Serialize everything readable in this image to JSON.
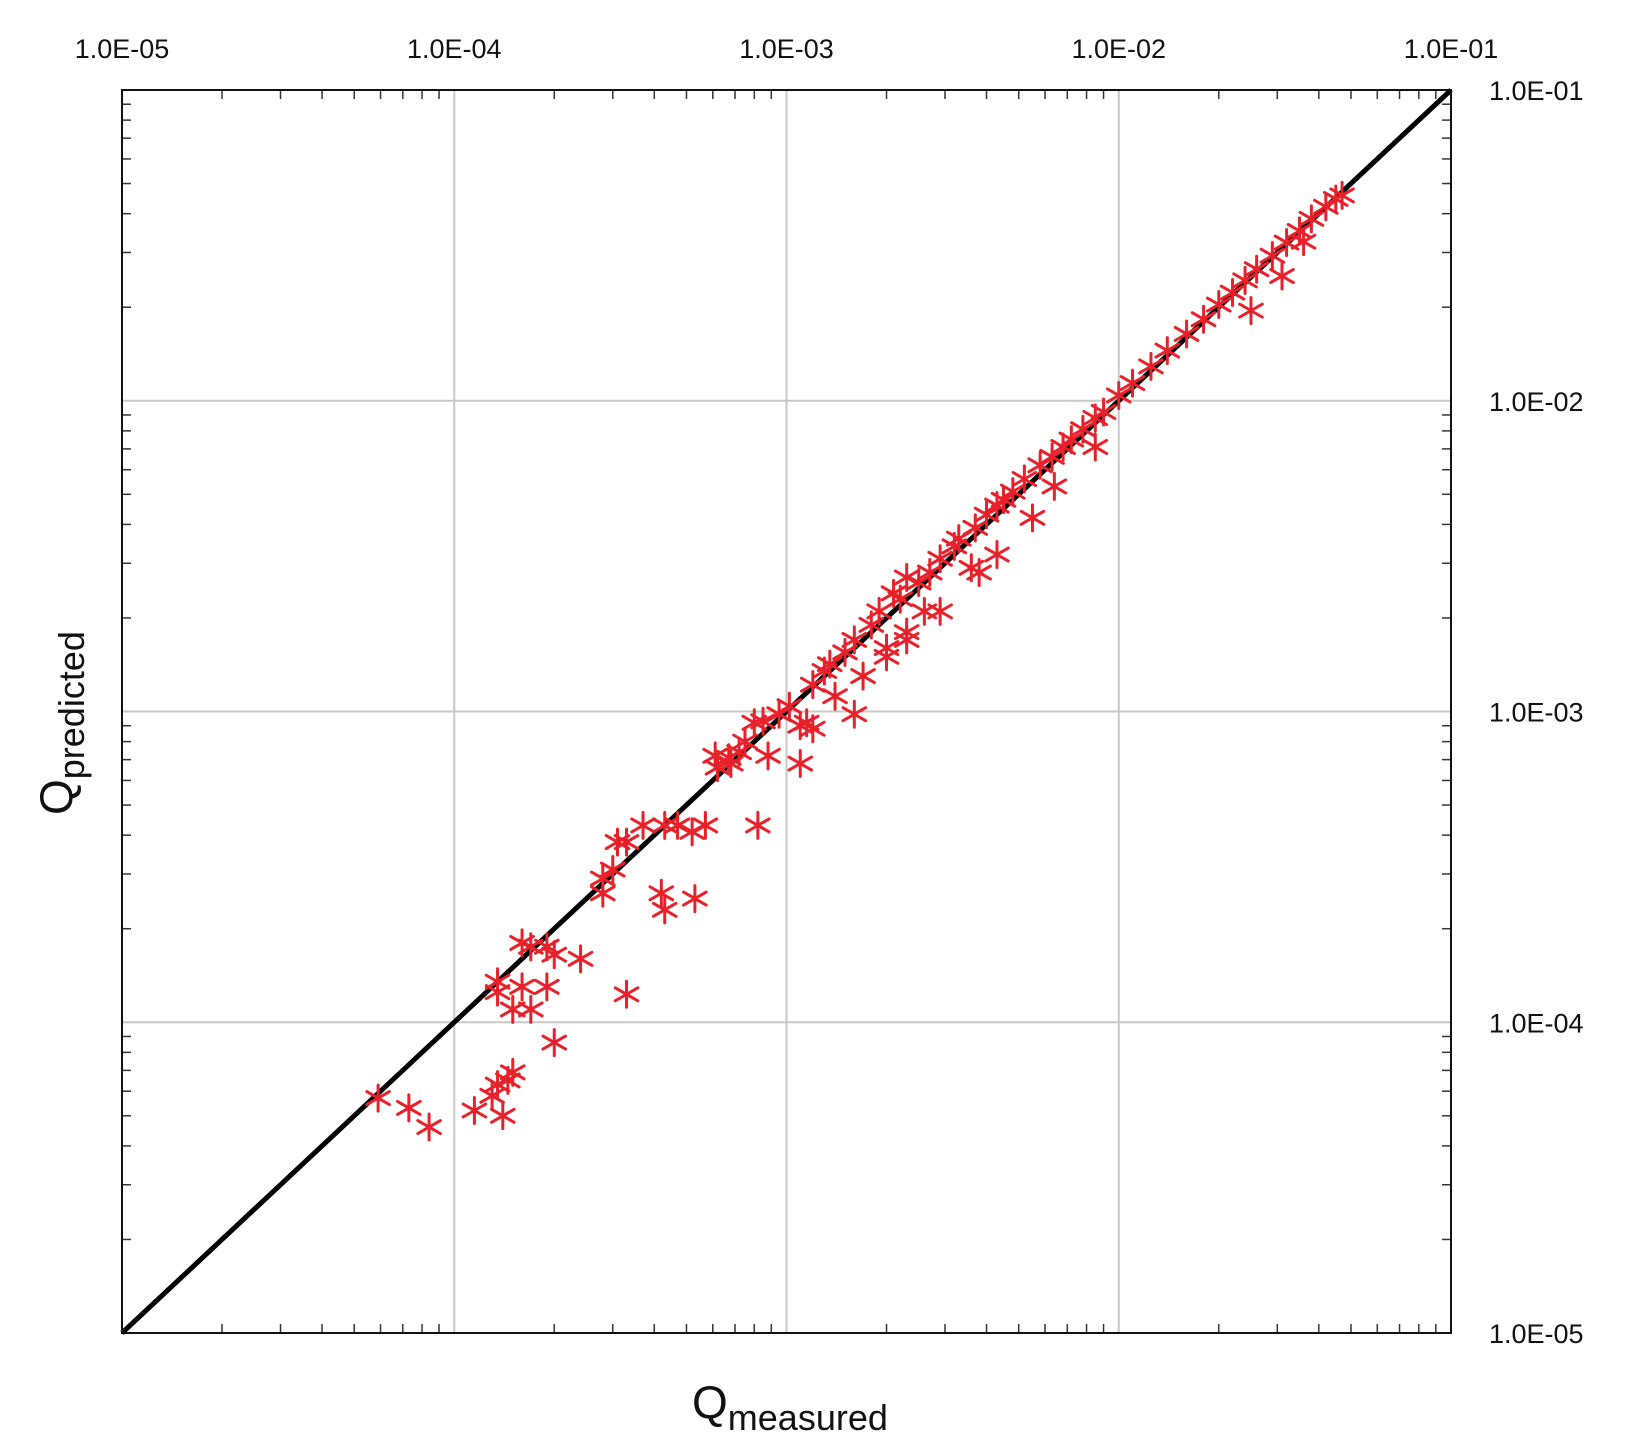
{
  "chart_data": {
    "type": "scatter",
    "title": "",
    "xlabel": "Q",
    "xlabel_subscript": "measured",
    "ylabel": "Q",
    "ylabel_subscript": "predicted",
    "xscale": "log",
    "yscale": "log",
    "xlim": [
      1e-05,
      0.1
    ],
    "ylim": [
      1e-05,
      0.1
    ],
    "x_tick_labels": [
      "1.0E-05",
      "1.0E-04",
      "1.0E-03",
      "1.0E-02",
      "1.0E-01"
    ],
    "y_tick_labels": [
      "1.0E-05",
      "1.0E-04",
      "1.0E-03",
      "1.0E-02",
      "1.0E-01"
    ],
    "x_tick_position": "top",
    "y_tick_position": "right",
    "grid": true,
    "reference_line": {
      "type": "y=x",
      "color": "#000000"
    },
    "marker": "asterisk",
    "marker_color": "#e8202a",
    "series": [
      {
        "x": [
          5.9e-05,
          7.3e-05,
          8.4e-05,
          0.000115,
          0.00013,
          0.000135,
          0.00014,
          0.000145,
          0.00015,
          0.000135,
          0.000135,
          0.00015,
          0.00016,
          0.00016,
          0.00017,
          0.00019,
          0.00017,
          0.00019,
          0.0002,
          0.0002,
          0.00024,
          0.00033,
          0.00028,
          0.00028,
          0.0003,
          0.00031,
          0.00033,
          0.00037,
          0.00043,
          0.00042,
          0.00043,
          0.00053,
          0.00047,
          0.00052,
          0.00057,
          0.00062,
          0.00068,
          0.00082,
          0.00061,
          0.00067,
          0.00072,
          0.0008,
          0.00075,
          0.00085,
          0.00095,
          0.00088,
          0.00102,
          0.0011,
          0.0012,
          0.0013,
          0.00115,
          0.00135,
          0.0015,
          0.0014,
          0.0016,
          0.0018,
          0.0017,
          0.0019,
          0.0021,
          0.0022,
          0.002,
          0.0016,
          0.0025,
          0.0023,
          0.0027,
          0.0029,
          0.0032,
          0.0026,
          0.0033,
          0.0037,
          0.004,
          0.0043,
          0.0045,
          0.0048,
          0.0052,
          0.0058,
          0.0063,
          0.0068,
          0.0072,
          0.0078,
          0.0085,
          0.009,
          0.01,
          0.011,
          0.0125,
          0.014,
          0.016,
          0.018,
          0.02,
          0.022,
          0.024,
          0.026,
          0.029,
          0.032,
          0.035,
          0.038,
          0.042,
          0.045,
          0.047,
          0.031,
          0.025,
          0.036,
          0.0043,
          0.0038,
          0.0023,
          0.0029,
          0.002,
          0.0012,
          0.0011,
          0.0023,
          0.0036,
          0.0064,
          0.0055,
          0.0085
        ],
        "y": [
          5.7e-05,
          5.3e-05,
          4.6e-05,
          5.2e-05,
          5.8e-05,
          6.3e-05,
          5e-05,
          6.5e-05,
          6.9e-05,
          0.000135,
          0.000125,
          0.00011,
          0.00018,
          0.00013,
          0.000175,
          0.000175,
          0.00011,
          0.00013,
          0.000165,
          8.6e-05,
          0.00016,
          0.000123,
          0.00026,
          0.00029,
          0.00031,
          0.00038,
          0.00038,
          0.00043,
          0.00043,
          0.00026,
          0.00023,
          0.00025,
          0.00043,
          0.00041,
          0.00043,
          0.00066,
          0.00068,
          0.00043,
          0.00072,
          0.00071,
          0.00074,
          0.00092,
          0.0008,
          0.00093,
          0.00098,
          0.00072,
          0.00104,
          0.00068,
          0.00122,
          0.00135,
          0.00092,
          0.00142,
          0.00155,
          0.00112,
          0.0017,
          0.0019,
          0.0013,
          0.0021,
          0.0024,
          0.0023,
          0.0016,
          0.00098,
          0.0026,
          0.0018,
          0.0028,
          0.0031,
          0.0034,
          0.0021,
          0.0036,
          0.0039,
          0.0043,
          0.0046,
          0.0048,
          0.0051,
          0.0056,
          0.0062,
          0.0066,
          0.0071,
          0.0075,
          0.0081,
          0.0088,
          0.0092,
          0.0104,
          0.0114,
          0.0129,
          0.0145,
          0.0164,
          0.0183,
          0.0204,
          0.0223,
          0.0244,
          0.0265,
          0.0293,
          0.0323,
          0.0352,
          0.0385,
          0.0421,
          0.0446,
          0.0458,
          0.0252,
          0.0195,
          0.0325,
          0.0032,
          0.0028,
          0.0017,
          0.0021,
          0.0015,
          0.00088,
          0.0009,
          0.0027,
          0.0029,
          0.0053,
          0.0042,
          0.0071
        ]
      }
    ]
  }
}
